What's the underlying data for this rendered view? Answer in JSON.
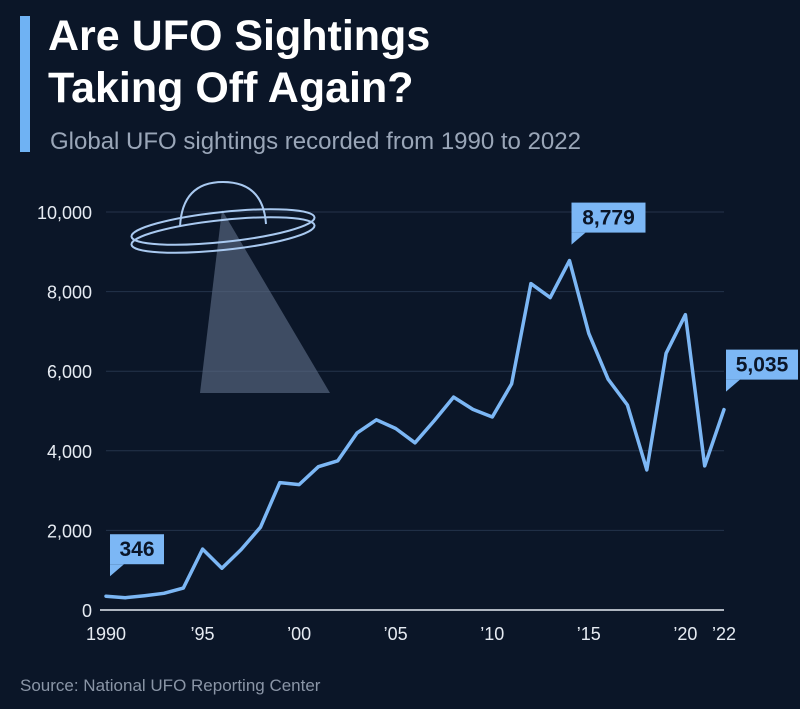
{
  "header": {
    "title_line1": "Are UFO Sightings",
    "title_line2": "Taking Off Again?",
    "subtitle": "Global UFO sightings recorded from 1990 to 2022"
  },
  "footer": {
    "source": "Source: National UFO Reporting Center"
  },
  "colors": {
    "background": "#0b1628",
    "line": "#7cb7f5",
    "accent": "#6fb2f3",
    "illustration_stroke": "#a9c9f0"
  },
  "illustration": {
    "icon": "ufo-icon"
  },
  "chart_data": {
    "type": "line",
    "title": "Are UFO Sightings Taking Off Again?",
    "subtitle": "Global UFO sightings recorded from 1990 to 2022",
    "xlabel": "",
    "ylabel": "",
    "ylim": [
      0,
      10000
    ],
    "yticks": [
      0,
      2000,
      4000,
      6000,
      8000,
      10000
    ],
    "ytick_labels": [
      "0",
      "2,000",
      "4,000",
      "6,000",
      "8,000",
      "10,000"
    ],
    "xticks": [
      1990,
      1995,
      2000,
      2005,
      2010,
      2015,
      2020,
      2022
    ],
    "xtick_labels": [
      "1990",
      "’95",
      "’00",
      "’05",
      "’10",
      "’15",
      "’20",
      "’22"
    ],
    "grid": true,
    "series": [
      {
        "name": "UFO sightings",
        "x": [
          1990,
          1991,
          1992,
          1993,
          1994,
          1995,
          1996,
          1997,
          1998,
          1999,
          2000,
          2001,
          2002,
          2003,
          2004,
          2005,
          2006,
          2007,
          2008,
          2009,
          2010,
          2011,
          2012,
          2013,
          2014,
          2015,
          2016,
          2017,
          2018,
          2019,
          2020,
          2021,
          2022
        ],
        "values": [
          346,
          310,
          360,
          420,
          550,
          1530,
          1050,
          1520,
          2080,
          3200,
          3150,
          3600,
          3750,
          4450,
          4780,
          4560,
          4200,
          4760,
          5350,
          5040,
          4850,
          5680,
          8200,
          7850,
          8779,
          6950,
          5800,
          5150,
          3520,
          6450,
          7420,
          3620,
          5035
        ]
      }
    ],
    "annotations": [
      {
        "x": 1990,
        "value": 346,
        "label": "346"
      },
      {
        "x": 2014,
        "value": 8779,
        "label": "8,779"
      },
      {
        "x": 2022,
        "value": 5035,
        "label": "5,035"
      }
    ]
  }
}
